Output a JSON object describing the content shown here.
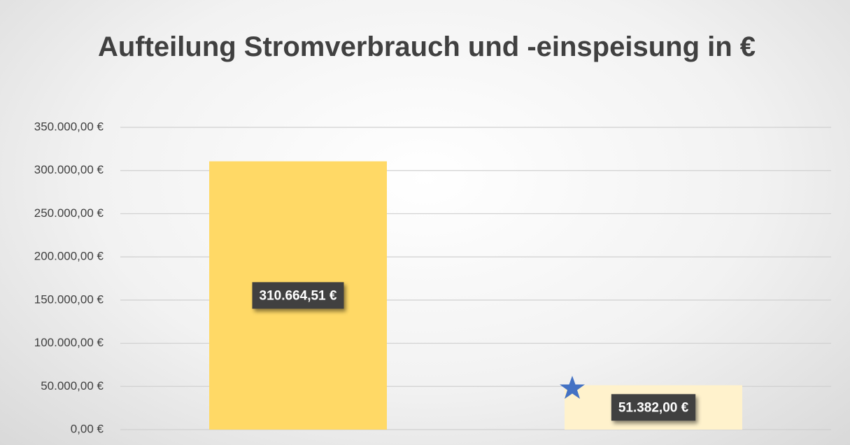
{
  "chart_data": {
    "type": "bar",
    "title": "Aufteilung Stromverbrauch und -einspeisung in €",
    "categories": [
      null,
      null
    ],
    "values": [
      310664.51,
      51382
    ],
    "value_labels": [
      "310.664,51 €",
      "51.382,00 €"
    ],
    "colors": [
      "#ffd966",
      "#fff2cc"
    ],
    "ylim": [
      0,
      350000
    ],
    "yticks": [
      {
        "value": 0,
        "label": "0,00 €"
      },
      {
        "value": 50000,
        "label": "50.000,00 €"
      },
      {
        "value": 100000,
        "label": "100.000,00 €"
      },
      {
        "value": 150000,
        "label": "150.000,00 €"
      },
      {
        "value": 200000,
        "label": "200.000,00 €"
      },
      {
        "value": 250000,
        "label": "250.000,00 €"
      },
      {
        "value": 300000,
        "label": "300.000,00 €"
      },
      {
        "value": 350000,
        "label": "350.000,00 €"
      }
    ],
    "grid": true
  }
}
